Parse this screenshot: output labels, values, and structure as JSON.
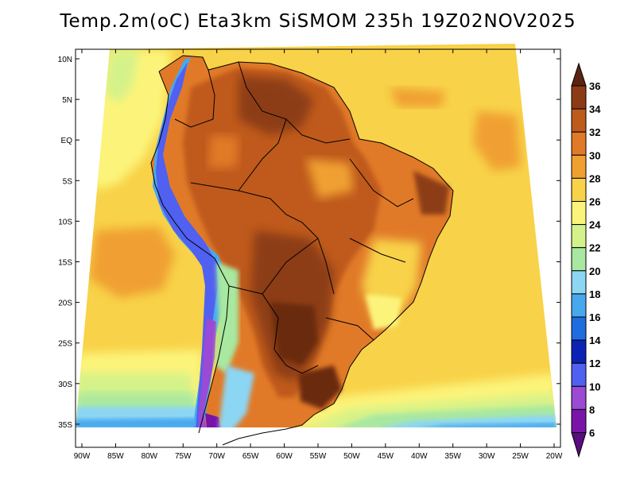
{
  "title": "Temp.2m(oC) Eta3km SiSMOM 235h 19Z02NOV2025",
  "map": {
    "region": "South America",
    "lon_range": [
      -90,
      -20
    ],
    "lat_range": [
      -37,
      11
    ],
    "lat_ticks": [
      {
        "value": 10,
        "label": "10N"
      },
      {
        "value": 5,
        "label": "5N"
      },
      {
        "value": 0,
        "label": "EQ"
      },
      {
        "value": -5,
        "label": "5S"
      },
      {
        "value": -10,
        "label": "10S"
      },
      {
        "value": -15,
        "label": "15S"
      },
      {
        "value": -20,
        "label": "20S"
      },
      {
        "value": -25,
        "label": "25S"
      },
      {
        "value": -30,
        "label": "30S"
      },
      {
        "value": -35,
        "label": "35S"
      }
    ],
    "lon_ticks": [
      {
        "value": -90,
        "label": "90W"
      },
      {
        "value": -85,
        "label": "85W"
      },
      {
        "value": -80,
        "label": "80W"
      },
      {
        "value": -75,
        "label": "75W"
      },
      {
        "value": -70,
        "label": "70W"
      },
      {
        "value": -65,
        "label": "65W"
      },
      {
        "value": -60,
        "label": "60W"
      },
      {
        "value": -55,
        "label": "55W"
      },
      {
        "value": -50,
        "label": "50W"
      },
      {
        "value": -45,
        "label": "45W"
      },
      {
        "value": -40,
        "label": "40W"
      },
      {
        "value": -35,
        "label": "35W"
      },
      {
        "value": -30,
        "label": "30W"
      },
      {
        "value": -25,
        "label": "25W"
      },
      {
        "value": -20,
        "label": "20W"
      }
    ]
  },
  "colorbar": {
    "unit": "oC",
    "levels": [
      {
        "value": 36,
        "label": "36",
        "color": "#6b2a0c"
      },
      {
        "value": 34,
        "label": "34",
        "color": "#8c3c14"
      },
      {
        "value": 32,
        "label": "32",
        "color": "#bf5a1d"
      },
      {
        "value": 30,
        "label": "30",
        "color": "#e17a28"
      },
      {
        "value": 28,
        "label": "28",
        "color": "#f0a030"
      },
      {
        "value": 26,
        "label": "26",
        "color": "#f8d248"
      },
      {
        "value": 24,
        "label": "24",
        "color": "#fcf47a"
      },
      {
        "value": 22,
        "label": "22",
        "color": "#d4f28a"
      },
      {
        "value": 20,
        "label": "20",
        "color": "#a8e8a0"
      },
      {
        "value": 18,
        "label": "18",
        "color": "#8cd6f4"
      },
      {
        "value": 16,
        "label": "16",
        "color": "#48a8ee"
      },
      {
        "value": 14,
        "label": "14",
        "color": "#1e6ce0"
      },
      {
        "value": 12,
        "label": "12",
        "color": "#0c22b4"
      },
      {
        "value": 10,
        "label": "10",
        "color": "#5060f0"
      },
      {
        "value": 8,
        "label": "8",
        "color": "#9a4ad4"
      },
      {
        "value": 6,
        "label": "6",
        "color": "#7a14a8"
      }
    ],
    "top_color": "#5c2410",
    "bottom_color": "#5a0c80"
  }
}
